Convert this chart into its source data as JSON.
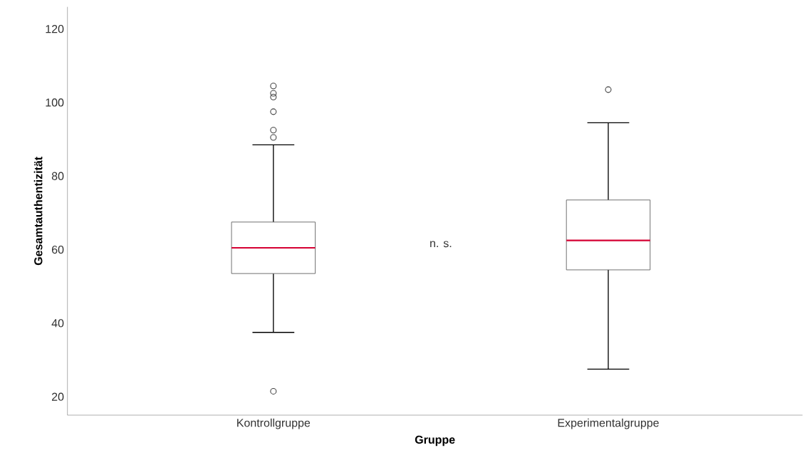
{
  "chart_data": {
    "type": "box",
    "xlabel": "Gruppe",
    "ylabel": "Gesamtauthentizität",
    "categories": [
      "Kontrollgruppe",
      "Experimentalgruppe"
    ],
    "boxes": [
      {
        "low": 37.5,
        "q1": 53.5,
        "median": 60.5,
        "q3": 67.5,
        "high": 88.5,
        "outliers": [
          104.5,
          102.5,
          101.5,
          97.5,
          92.5,
          90.5,
          21.5
        ]
      },
      {
        "low": 27.5,
        "q1": 54.5,
        "median": 62.5,
        "q3": 73.5,
        "high": 94.5,
        "outliers": [
          103.5
        ]
      }
    ],
    "color": "#4c4c4c",
    "ylim": [
      15,
      126
    ],
    "yticks": [
      20,
      40,
      60,
      80,
      100,
      120
    ],
    "annotations": [
      "n. s."
    ],
    "grid": false
  }
}
